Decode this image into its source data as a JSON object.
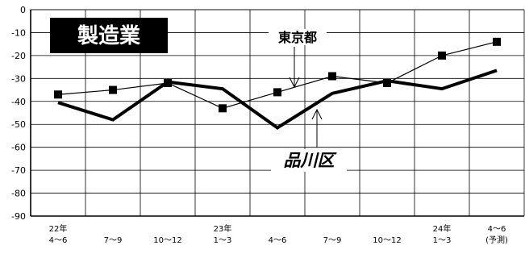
{
  "chart_data": {
    "type": "line",
    "title": "製造業",
    "ylim": [
      -90,
      0
    ],
    "y_ticks": [
      "0",
      "-10",
      "-20",
      "-30",
      "-40",
      "-50",
      "-60",
      "-70",
      "-80",
      "-90"
    ],
    "y_tick_values": [
      0,
      -10,
      -20,
      -30,
      -40,
      -50,
      -60,
      -70,
      -80,
      -90
    ],
    "grid": true,
    "categories": [
      [
        "22年",
        "4〜6"
      ],
      [
        "",
        "7〜9"
      ],
      [
        "",
        "10〜12"
      ],
      [
        "23年",
        "1〜3"
      ],
      [
        "",
        "4〜6"
      ],
      [
        "",
        "7〜9"
      ],
      [
        "",
        "10〜12"
      ],
      [
        "24年",
        "1〜3"
      ],
      [
        "4〜6",
        "(予測)"
      ]
    ],
    "series": [
      {
        "name": "東京都",
        "marker": "square",
        "values": [
          -37,
          -35,
          -32,
          -43,
          -36,
          -29,
          -32,
          -20,
          -14
        ]
      },
      {
        "name": "品川区",
        "marker": "none",
        "values": [
          -40.5,
          -48,
          -31.5,
          -34.5,
          -51.5,
          -36.5,
          -31,
          -34.5,
          -26.5
        ]
      }
    ],
    "colors": {
      "line": "#000000",
      "title_bg": "#000000",
      "title_text": "#ffffff"
    }
  }
}
